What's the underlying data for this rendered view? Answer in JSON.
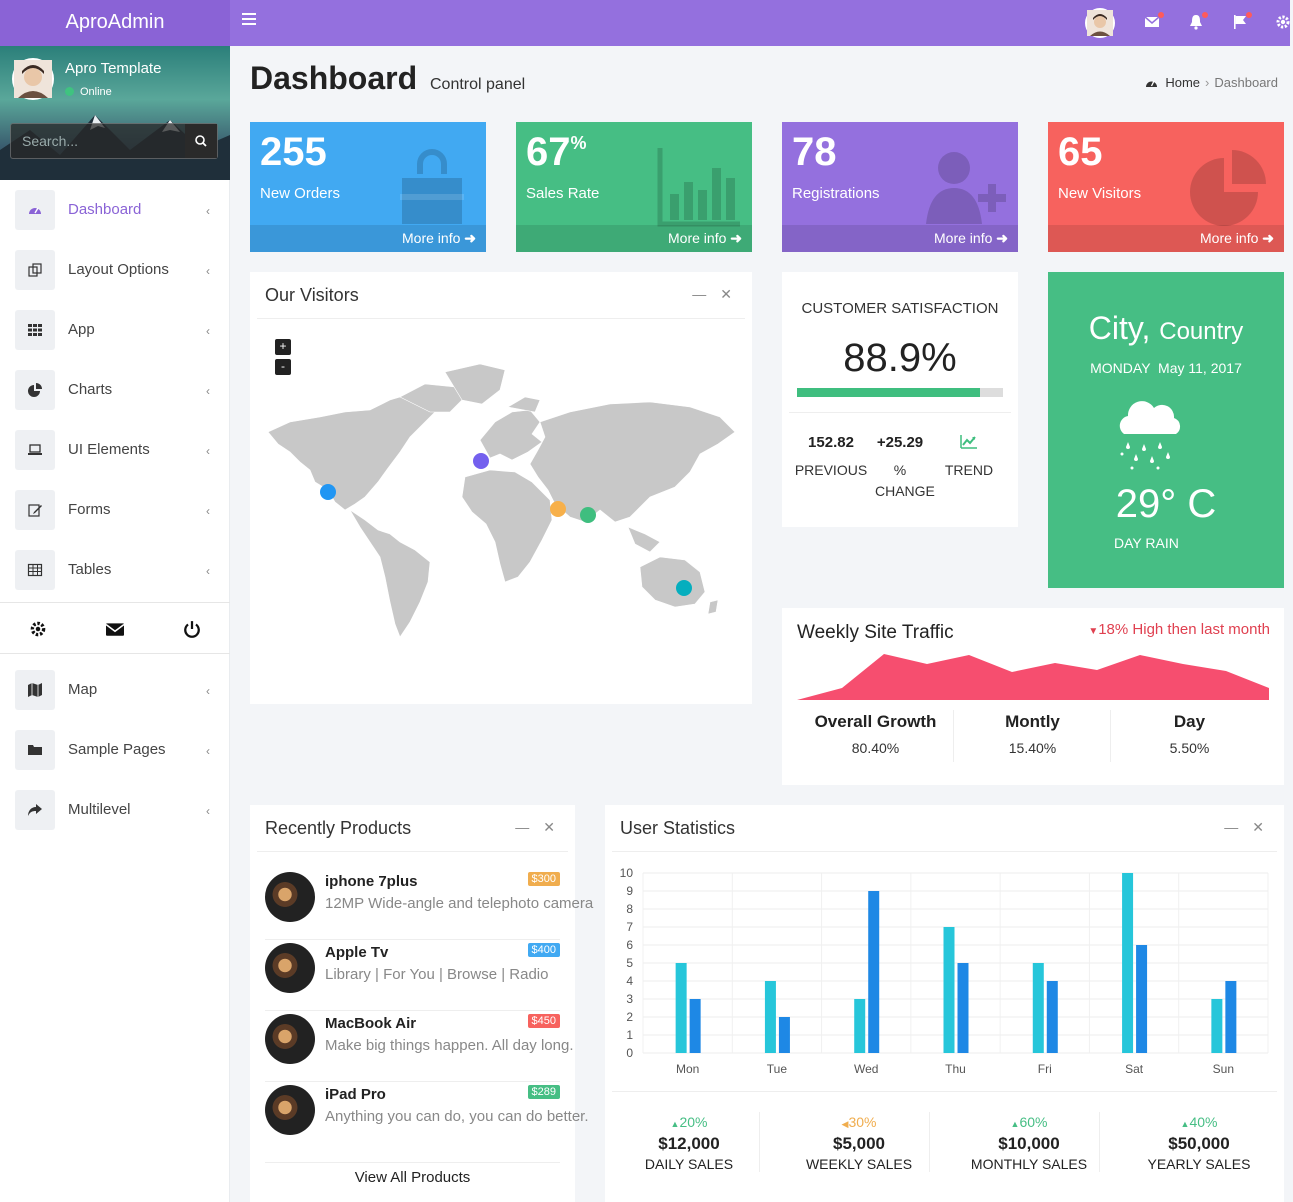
{
  "brand": "AproAdmin",
  "topbar": {
    "icons": [
      "menu-icon",
      "avatar",
      "mail-icon",
      "bell-icon",
      "flag-icon",
      "gear-icon"
    ]
  },
  "user": {
    "name": "Apro Template",
    "status": "Online"
  },
  "search": {
    "placeholder": "Search..."
  },
  "menu": [
    {
      "label": "Dashboard",
      "icon": "dashboard-icon",
      "active": true
    },
    {
      "label": "Layout Options",
      "icon": "copy-icon"
    },
    {
      "label": "App",
      "icon": "grid-icon"
    },
    {
      "label": "Charts",
      "icon": "pie-chart-icon"
    },
    {
      "label": "UI Elements",
      "icon": "laptop-icon"
    },
    {
      "label": "Forms",
      "icon": "edit-icon"
    },
    {
      "label": "Tables",
      "icon": "table-icon"
    }
  ],
  "menu2": [
    {
      "label": "Map",
      "icon": "map-icon"
    },
    {
      "label": "Sample Pages",
      "icon": "folder-icon"
    },
    {
      "label": "Multilevel",
      "icon": "share-icon"
    }
  ],
  "header": {
    "title": "Dashboard",
    "subtitle": "Control panel",
    "crumbs": [
      "Home",
      "Dashboard"
    ]
  },
  "stats": [
    {
      "value": "255",
      "suffix": "",
      "label": "New Orders",
      "more": "More info",
      "color": "#41a9f2",
      "icon": "shopping-bag-icon"
    },
    {
      "value": "67",
      "suffix": "%",
      "label": "Sales Rate",
      "more": "More info",
      "color": "#46be84",
      "icon": "bar-chart-icon"
    },
    {
      "value": "78",
      "suffix": "",
      "label": "Registrations",
      "more": "More info",
      "color": "#9470de",
      "icon": "user-plus-icon"
    },
    {
      "value": "65",
      "suffix": "",
      "label": "New Visitors",
      "more": "More info",
      "color": "#f7625e",
      "icon": "pie-chart-icon"
    }
  ],
  "visitors": {
    "title": "Our Visitors",
    "zoom_in": "+",
    "zoom_out": "-"
  },
  "satisfaction": {
    "title": "CUSTOMER SATISFACTION",
    "value": "88.9%",
    "progress": 0.889,
    "previous": "152.82",
    "previous_label": "PREVIOUS",
    "change": "+25.29",
    "change_label": "% CHANGE",
    "trend_label": "TREND"
  },
  "weather": {
    "city": "City,",
    "country": "Country",
    "date": "MONDAY  May 11, 2017",
    "temp": "29° C",
    "desc": "DAY RAIN"
  },
  "traffic": {
    "title": "Weekly Site Traffic",
    "note": "18% High then last month",
    "stats": [
      {
        "label": "Overall Growth",
        "value": "80.40%"
      },
      {
        "label": "Montly",
        "value": "15.40%"
      },
      {
        "label": "Day",
        "value": "5.50%"
      }
    ]
  },
  "products": {
    "title": "Recently Products",
    "view_all": "View All Products",
    "items": [
      {
        "name": "iphone 7plus",
        "desc": "12MP Wide-angle and telephoto camera",
        "price": "$300",
        "color": "#f0ad4e"
      },
      {
        "name": "Apple Tv",
        "desc": "Library | For You | Browse | Radio",
        "price": "$400",
        "color": "#41a9f2"
      },
      {
        "name": "MacBook Air",
        "desc": "Make big things happen. All day long.",
        "price": "$450",
        "color": "#f7625e"
      },
      {
        "name": "iPad Pro",
        "desc": "Anything you can do, you can do better.",
        "price": "$289",
        "color": "#46be84"
      }
    ]
  },
  "user_stats": {
    "title": "User Statistics",
    "sales": [
      {
        "pct": "20%",
        "dir": "up",
        "amount": "$12,000",
        "label": "DAILY SALES",
        "color": "#46be84"
      },
      {
        "pct": "30%",
        "dir": "left",
        "amount": "$5,000",
        "label": "WEEKLY SALES",
        "color": "#f0ad4e"
      },
      {
        "pct": "60%",
        "dir": "up",
        "amount": "$10,000",
        "label": "MONTHLY SALES",
        "color": "#46be84"
      },
      {
        "pct": "40%",
        "dir": "up",
        "amount": "$50,000",
        "label": "YEARLY SALES",
        "color": "#46be84"
      }
    ]
  },
  "chart_data": {
    "type": "bar",
    "categories": [
      "Mon",
      "Tue",
      "Wed",
      "Thu",
      "Fri",
      "Sat",
      "Sun"
    ],
    "series": [
      {
        "values": [
          5,
          4,
          3,
          7,
          5,
          10,
          3
        ],
        "color": "#26c6da"
      },
      {
        "values": [
          3,
          2,
          9,
          5,
          4,
          6,
          4
        ],
        "color": "#1e88e5"
      }
    ],
    "ylim": [
      0,
      10
    ],
    "yticks": [
      0,
      1,
      2,
      3,
      4,
      5,
      6,
      7,
      8,
      9,
      10
    ],
    "grid": true
  }
}
